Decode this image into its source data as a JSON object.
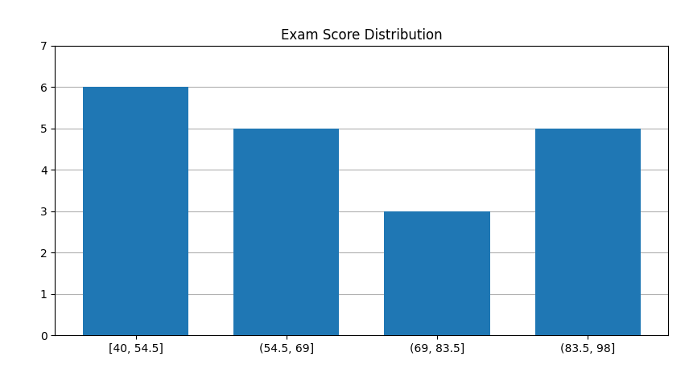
{
  "chart_data": {
    "type": "bar",
    "title": "Exam Score Distribution",
    "categories": [
      "[40, 54.5]",
      "(54.5, 69]",
      "(69, 83.5]",
      "(83.5, 98]"
    ],
    "values": [
      6,
      5,
      3,
      5
    ],
    "ylim": [
      0,
      7
    ],
    "yticks": [
      0,
      1,
      2,
      3,
      4,
      5,
      6,
      7
    ],
    "grid": true
  }
}
